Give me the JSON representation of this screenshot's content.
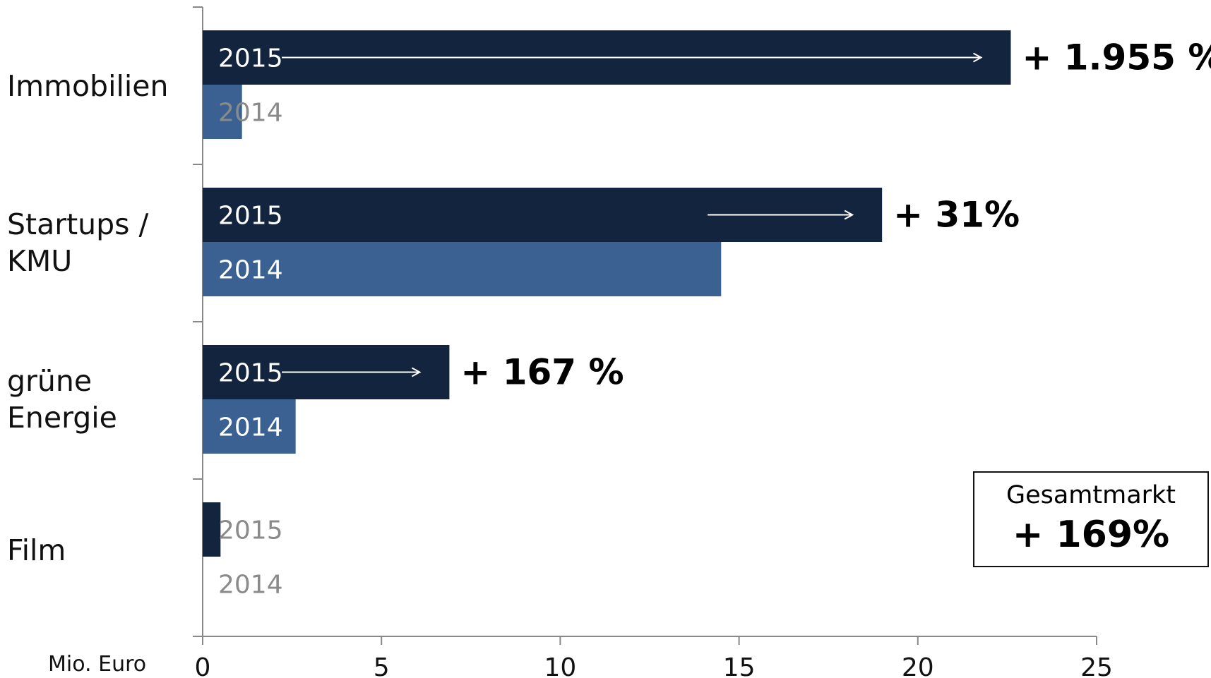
{
  "chart_data": {
    "type": "bar",
    "orientation": "horizontal",
    "categories": [
      "Immobilien",
      "Startups /\nKMU",
      "grüne\nEnergie",
      "Film"
    ],
    "series": [
      {
        "name": "2015",
        "values": [
          22.6,
          19.0,
          6.9,
          0.5
        ],
        "color": "#13243f"
      },
      {
        "name": "2014",
        "values": [
          1.1,
          14.5,
          2.6,
          0.0
        ],
        "color": "#3a6192"
      }
    ],
    "growth_labels": [
      "+ 1.955 %",
      "+ 31%",
      "+ 167 %",
      ""
    ],
    "xlim": [
      0,
      25
    ],
    "xticks": [
      "0",
      "5",
      "10",
      "15",
      "20",
      "25"
    ],
    "xlabel": "Mio. Euro",
    "total": {
      "title": "Gesamtmarkt",
      "value": "+ 169%"
    }
  }
}
